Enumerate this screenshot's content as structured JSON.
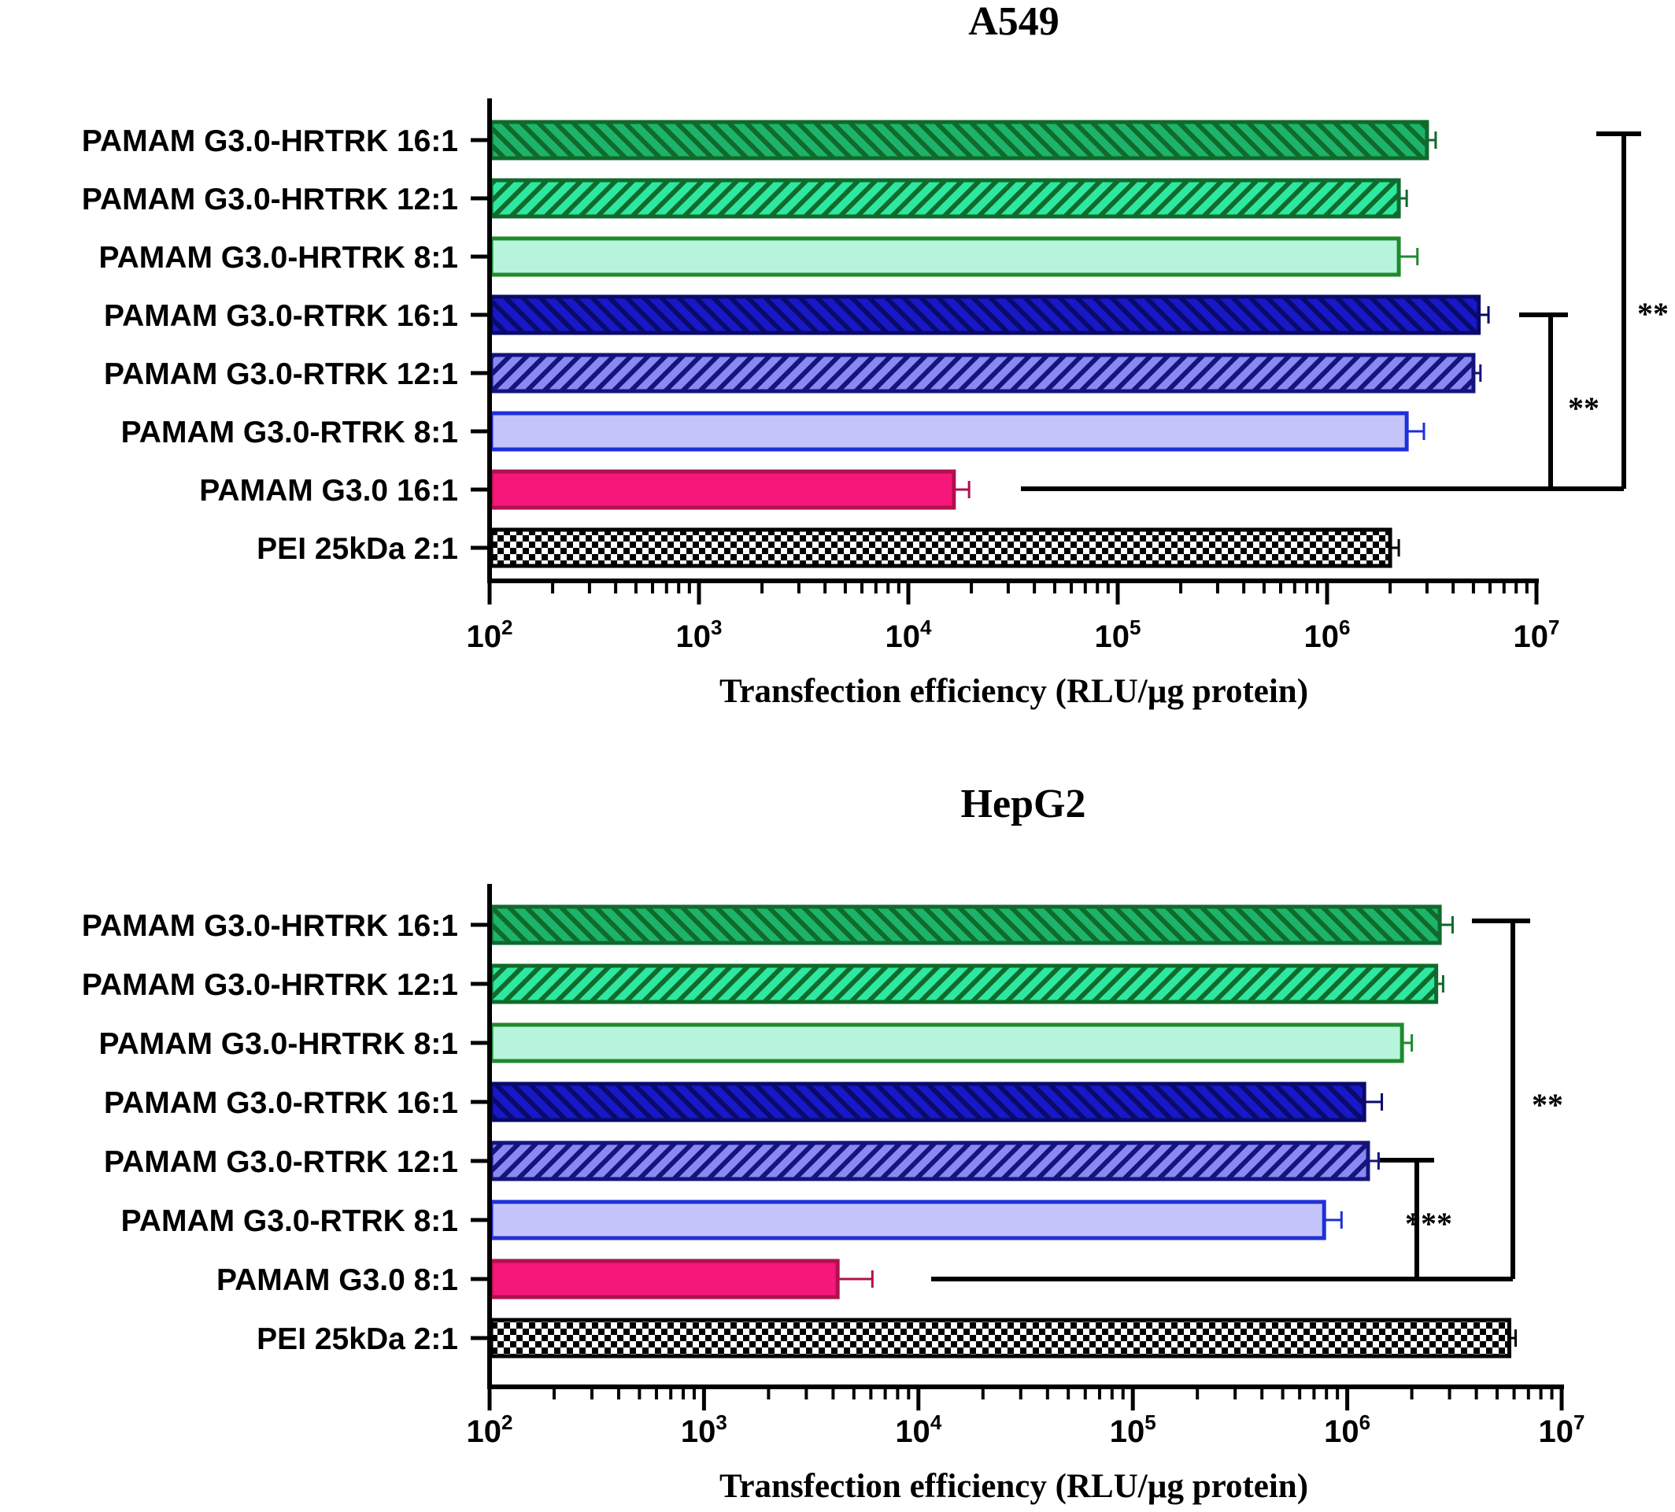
{
  "chart_data": [
    {
      "type": "bar",
      "orientation": "horizontal",
      "title": "A549",
      "xlabel": "Transfection efficiency (RLU/µg protein)",
      "ylabel": "",
      "x_scale": "log",
      "xlim": [
        100,
        10000000
      ],
      "x_ticks": [
        {
          "base": "10",
          "exp": "2"
        },
        {
          "base": "10",
          "exp": "3"
        },
        {
          "base": "10",
          "exp": "4"
        },
        {
          "base": "10",
          "exp": "5"
        },
        {
          "base": "10",
          "exp": "6"
        },
        {
          "base": "10",
          "exp": "7"
        }
      ],
      "categories": [
        "PAMAM G3.0-HRTRK 16:1",
        "PAMAM G3.0-HRTRK 12:1",
        "PAMAM G3.0-HRTRK 8:1",
        "PAMAM G3.0-RTRK 16:1",
        "PAMAM G3.0-RTRK 12:1",
        "PAMAM G3.0-RTRK 8:1",
        "PAMAM G3.0 16:1",
        "PEI 25kDa 2:1"
      ],
      "values": [
        3000000,
        2200000,
        2200000,
        5300000,
        5000000,
        2400000,
        16500,
        2000000
      ],
      "errors": [
        300000,
        200000,
        500000,
        600000,
        400000,
        500000,
        3000,
        200000
      ],
      "bar_styles": [
        {
          "fill": "#1db36b",
          "stroke": "#0f6a2c",
          "pattern": "stripes-down"
        },
        {
          "fill": "#2ee8a0",
          "stroke": "#0f6a2c",
          "pattern": "stripes-up"
        },
        {
          "fill": "#b6f5dc",
          "stroke": "#1f8a2e",
          "pattern": "none"
        },
        {
          "fill": "#1818c8",
          "stroke": "#0a0a6a",
          "pattern": "stripes-down"
        },
        {
          "fill": "#8a88f2",
          "stroke": "#14147a",
          "pattern": "stripes-up"
        },
        {
          "fill": "#c4c4fb",
          "stroke": "#1f2fd8",
          "pattern": "none"
        },
        {
          "fill": "#f5177a",
          "stroke": "#b0104e",
          "pattern": "none"
        },
        {
          "fill": "#ffffff",
          "stroke": "#000000",
          "pattern": "checker"
        }
      ],
      "significance": [
        {
          "label": "**",
          "compare": [
            3,
            6
          ]
        },
        {
          "label": "**",
          "compare": [
            0,
            6
          ]
        }
      ]
    },
    {
      "type": "bar",
      "orientation": "horizontal",
      "title": "HepG2",
      "xlabel": "Transfection efficiency (RLU/µg protein)",
      "ylabel": "",
      "x_scale": "log",
      "xlim": [
        100,
        10000000
      ],
      "x_ticks": [
        {
          "base": "10",
          "exp": "2"
        },
        {
          "base": "10",
          "exp": "3"
        },
        {
          "base": "10",
          "exp": "4"
        },
        {
          "base": "10",
          "exp": "5"
        },
        {
          "base": "10",
          "exp": "6"
        },
        {
          "base": "10",
          "exp": "7"
        }
      ],
      "categories": [
        "PAMAM G3.0-HRTRK 16:1",
        "PAMAM G3.0-HRTRK 12:1",
        "PAMAM G3.0-HRTRK 8:1",
        "PAMAM G3.0-RTRK 16:1",
        "PAMAM G3.0-RTRK 12:1",
        "PAMAM G3.0-RTRK 8:1",
        "PAMAM G3.0 8:1",
        "PEI 25kDa 2:1"
      ],
      "values": [
        2700000,
        2600000,
        1800000,
        1200000,
        1250000,
        780000,
        4200,
        5700000
      ],
      "errors": [
        400000,
        200000,
        200000,
        250000,
        150000,
        160000,
        1900,
        400000
      ],
      "bar_styles": [
        {
          "fill": "#1db36b",
          "stroke": "#0f6a2c",
          "pattern": "stripes-down"
        },
        {
          "fill": "#2ee8a0",
          "stroke": "#0f6a2c",
          "pattern": "stripes-up"
        },
        {
          "fill": "#b6f5dc",
          "stroke": "#1f8a2e",
          "pattern": "none"
        },
        {
          "fill": "#1818c8",
          "stroke": "#0a0a6a",
          "pattern": "stripes-down"
        },
        {
          "fill": "#8a88f2",
          "stroke": "#14147a",
          "pattern": "stripes-up"
        },
        {
          "fill": "#c4c4fb",
          "stroke": "#1f2fd8",
          "pattern": "none"
        },
        {
          "fill": "#f5177a",
          "stroke": "#b0104e",
          "pattern": "none"
        },
        {
          "fill": "#ffffff",
          "stroke": "#000000",
          "pattern": "checker"
        }
      ],
      "significance": [
        {
          "label": "***",
          "compare": [
            4,
            6
          ]
        },
        {
          "label": "**",
          "compare": [
            0,
            6
          ]
        }
      ]
    }
  ]
}
